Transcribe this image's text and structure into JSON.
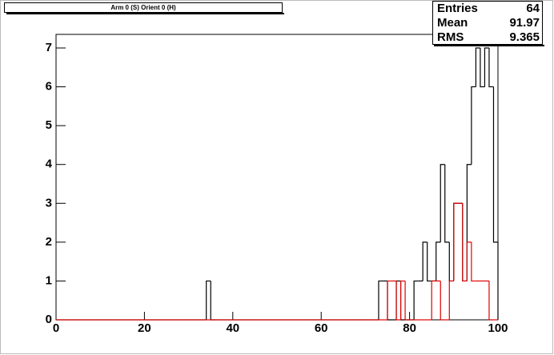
{
  "chart_data": {
    "type": "histogram",
    "title": "Arm 0 (S) Orient 0 (H)",
    "bins": [
      0,
      1,
      2,
      3,
      4,
      5,
      6,
      7,
      8,
      9,
      10,
      11,
      12,
      13,
      14,
      15,
      16,
      17,
      18,
      19,
      20,
      21,
      22,
      23,
      24,
      25,
      26,
      27,
      28,
      29,
      30,
      31,
      32,
      33,
      34,
      35,
      36,
      37,
      38,
      39,
      40,
      41,
      42,
      43,
      44,
      45,
      46,
      47,
      48,
      49,
      50,
      51,
      52,
      53,
      54,
      55,
      56,
      57,
      58,
      59,
      60,
      61,
      62,
      63,
      64,
      65,
      66,
      67,
      68,
      69,
      70,
      71,
      72,
      73,
      74,
      75,
      76,
      77,
      78,
      79,
      80,
      81,
      82,
      83,
      84,
      85,
      86,
      87,
      88,
      89,
      90,
      91,
      92,
      93,
      94,
      95,
      96,
      97,
      98,
      99,
      100
    ],
    "series": [
      {
        "color": "#000000",
        "values": [
          0,
          0,
          0,
          0,
          0,
          0,
          0,
          0,
          0,
          0,
          0,
          0,
          0,
          0,
          0,
          0,
          0,
          0,
          0,
          0,
          0,
          0,
          0,
          0,
          0,
          0,
          0,
          0,
          0,
          0,
          0,
          0,
          0,
          0,
          1,
          0,
          0,
          0,
          0,
          0,
          0,
          0,
          0,
          0,
          0,
          0,
          0,
          0,
          0,
          0,
          0,
          0,
          0,
          0,
          0,
          0,
          0,
          0,
          0,
          0,
          0,
          0,
          0,
          0,
          0,
          0,
          0,
          0,
          0,
          0,
          0,
          0,
          0,
          1,
          1,
          0,
          0,
          1,
          0,
          0,
          0,
          1,
          1,
          2,
          1,
          1,
          2,
          4,
          2,
          1,
          3,
          3,
          1,
          4,
          6,
          7,
          6,
          7,
          6,
          2
        ]
      },
      {
        "color": "#e00000",
        "values": [
          0,
          0,
          0,
          0,
          0,
          0,
          0,
          0,
          0,
          0,
          0,
          0,
          0,
          0,
          0,
          0,
          0,
          0,
          0,
          0,
          0,
          0,
          0,
          0,
          0,
          0,
          0,
          0,
          0,
          0,
          0,
          0,
          0,
          0,
          0,
          0,
          0,
          0,
          0,
          0,
          0,
          0,
          0,
          0,
          0,
          0,
          0,
          0,
          0,
          0,
          0,
          0,
          0,
          0,
          0,
          0,
          0,
          0,
          0,
          0,
          0,
          0,
          0,
          0,
          0,
          0,
          0,
          0,
          0,
          0,
          0,
          0,
          0,
          0,
          0,
          1,
          1,
          0,
          1,
          0,
          0,
          0,
          0,
          0,
          0,
          1,
          1,
          0,
          0,
          1,
          3,
          3,
          1,
          2,
          1,
          1,
          1,
          1,
          0,
          0
        ]
      }
    ],
    "xlim": [
      0,
      100
    ],
    "xticks": [
      0,
      20,
      40,
      60,
      80,
      100
    ],
    "ylim": [
      0,
      7.35
    ],
    "yticks": [
      0,
      1,
      2,
      3,
      4,
      5,
      6,
      7
    ],
    "stats": [
      {
        "label": "Entries",
        "value": 64
      },
      {
        "label": "Mean",
        "value": 91.97
      },
      {
        "label": "RMS",
        "value": 9.365
      }
    ]
  }
}
